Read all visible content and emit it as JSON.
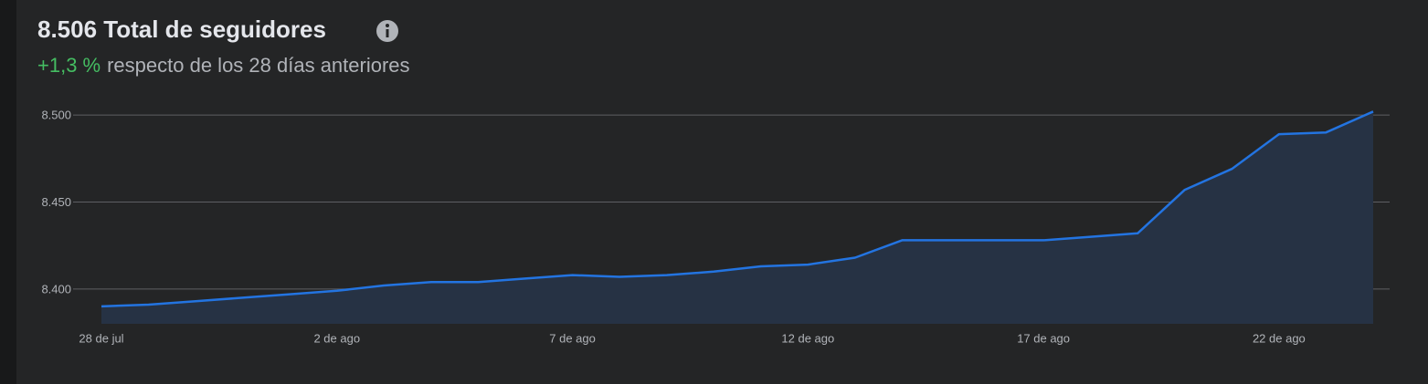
{
  "chart_data": {
    "type": "area",
    "title": "8.506 Total de seguidores",
    "change": "+1,3 %",
    "subtitle": "respecto de los 28 días anteriores",
    "categories": [
      "28 de jul",
      null,
      null,
      null,
      null,
      "2 de ago",
      null,
      null,
      null,
      null,
      "7 de ago",
      null,
      null,
      null,
      null,
      "12 de ago",
      null,
      null,
      null,
      null,
      "17 de ago",
      null,
      null,
      null,
      null,
      "22 de ago",
      null,
      null
    ],
    "values": [
      8390,
      8391,
      8393,
      8395,
      8397,
      8399,
      8402,
      8404,
      8404,
      8406,
      8408,
      8407,
      8408,
      8410,
      8413,
      8414,
      8418,
      8428,
      8428,
      8428,
      8428,
      8430,
      8432,
      8457,
      8469,
      8489,
      8490,
      8502
    ],
    "color": "#2374e1",
    "fill_color": "#263244",
    "change_color": "#45bd62",
    "ylim": [
      8380,
      8510
    ],
    "yticks": [
      {
        "value": 8400,
        "label": "8.400"
      },
      {
        "value": 8450,
        "label": "8.450"
      },
      {
        "value": 8500,
        "label": "8.500"
      }
    ],
    "grid": true
  }
}
